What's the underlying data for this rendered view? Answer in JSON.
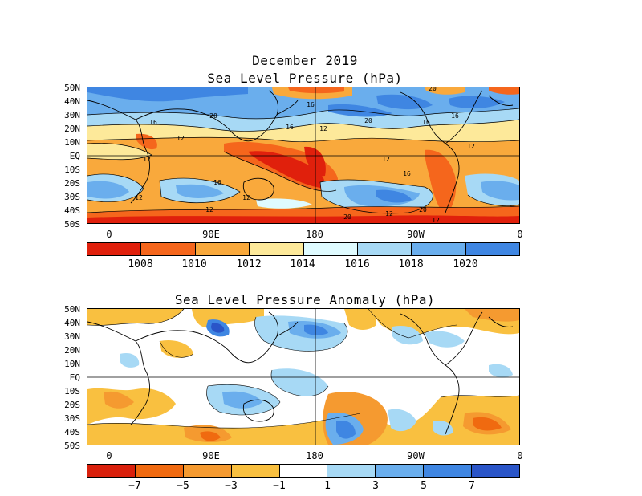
{
  "panel_top": {
    "title_line1": "December 2019",
    "title_line2": "Sea Level Pressure (hPa)",
    "lat_labels": [
      "50N",
      "40N",
      "30N",
      "20N",
      "10N",
      "EQ",
      "10S",
      "20S",
      "30S",
      "40S",
      "50S"
    ],
    "lon_labels": [
      "0",
      "90E",
      "180",
      "90W",
      "0"
    ],
    "contour_labels": [
      "16",
      "20",
      "16",
      "12",
      "16",
      "20",
      "16",
      "12",
      "12",
      "12",
      "16",
      "12",
      "12",
      "16",
      "20",
      "12",
      "12",
      "20",
      "16",
      "12",
      "20",
      "12"
    ],
    "colorbar_labels": [
      "1008",
      "1010",
      "1012",
      "1014",
      "1016",
      "1018",
      "1020"
    ],
    "colorbar_colors": [
      "#e0200c",
      "#f5661c",
      "#f9a93c",
      "#fde99a",
      "#dffbff",
      "#a7d9f5",
      "#6aaeed",
      "#3f86e2"
    ]
  },
  "panel_bottom": {
    "title": "Sea Level Pressure Anomaly (hPa)",
    "lat_labels": [
      "50N",
      "40N",
      "30N",
      "20N",
      "10N",
      "EQ",
      "10S",
      "20S",
      "30S",
      "40S",
      "50S"
    ],
    "lon_labels": [
      "0",
      "90E",
      "180",
      "90W",
      "0"
    ],
    "colorbar_labels": [
      "−7",
      "−5",
      "−3",
      "−1",
      "1",
      "3",
      "5",
      "7"
    ],
    "colorbar_colors": [
      "#d9200c",
      "#f06a10",
      "#f59a30",
      "#f9c040",
      "#ffffff",
      "#a7d9f5",
      "#6aaeed",
      "#3f86e2",
      "#2a55c8",
      "#7a5cc8"
    ]
  }
}
